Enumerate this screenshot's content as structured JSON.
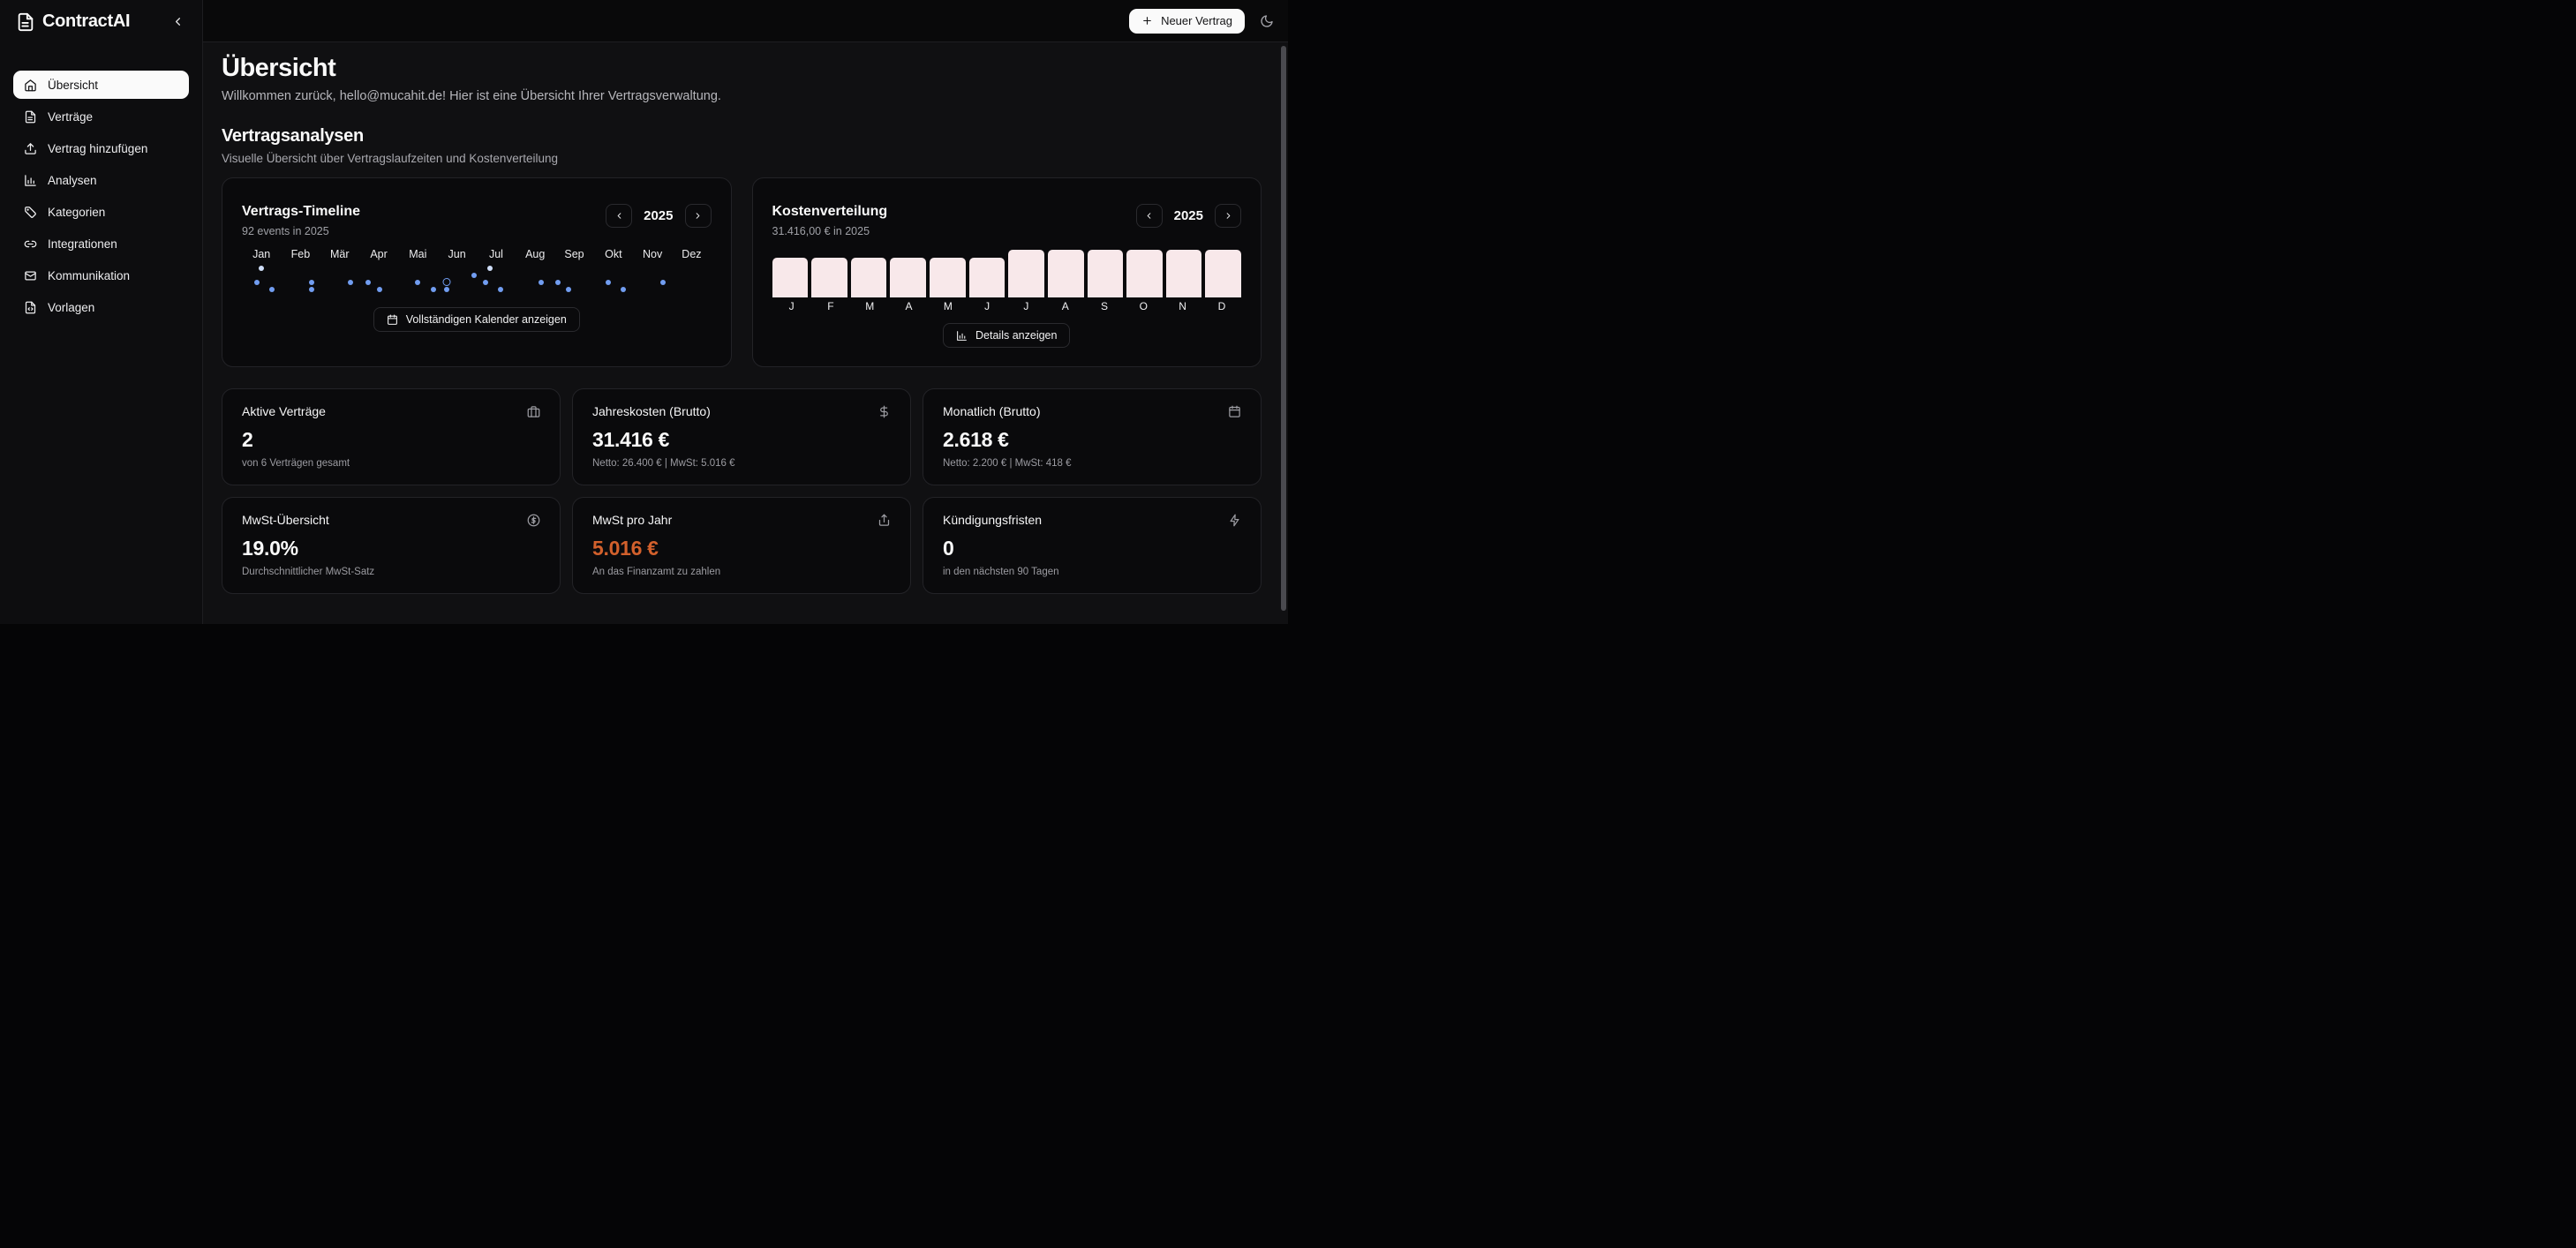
{
  "app": {
    "name": "ContractAI"
  },
  "topbar": {
    "new_contract_label": "Neuer Vertrag"
  },
  "sidebar": {
    "items": [
      {
        "label": "Übersicht",
        "icon": "home-icon",
        "active": true
      },
      {
        "label": "Verträge",
        "icon": "file-text-icon",
        "active": false
      },
      {
        "label": "Vertrag hinzufügen",
        "icon": "upload-icon",
        "active": false
      },
      {
        "label": "Analysen",
        "icon": "bar-chart-icon",
        "active": false
      },
      {
        "label": "Kategorien",
        "icon": "tag-icon",
        "active": false
      },
      {
        "label": "Integrationen",
        "icon": "link-icon",
        "active": false
      },
      {
        "label": "Kommunikation",
        "icon": "mail-icon",
        "active": false
      },
      {
        "label": "Vorlagen",
        "icon": "file-code-icon",
        "active": false
      }
    ]
  },
  "page": {
    "title": "Übersicht",
    "welcome": "Willkommen zurück, hello@mucahit.de! Hier ist eine Übersicht Ihrer Vertragsverwaltung."
  },
  "analytics": {
    "title": "Vertragsanalysen",
    "subtitle": "Visuelle Übersicht über Vertragslaufzeiten und Kostenverteilung"
  },
  "timeline_card": {
    "title": "Vertrags-Timeline",
    "subtitle": "92 events in 2025",
    "year": "2025",
    "button_label": "Vollständigen Kalender anzeigen"
  },
  "cost_card": {
    "title": "Kostenverteilung",
    "subtitle": "31.416,00 € in 2025",
    "year": "2025",
    "button_label": "Details anzeigen"
  },
  "chart_data": [
    {
      "type": "scatter",
      "title": "Vertrags-Timeline",
      "subtitle": "92 events in 2025",
      "year": 2025,
      "x_axis_labels": [
        "Jan",
        "Feb",
        "Mär",
        "Apr",
        "Mai",
        "Jun",
        "Jul",
        "Aug",
        "Sep",
        "Okt",
        "Nov",
        "Dez"
      ],
      "grid": false,
      "legend": "none",
      "events": [
        {
          "x": 4.2,
          "row": 0,
          "variant": "light"
        },
        {
          "x": 52.9,
          "row": 0,
          "variant": "light"
        },
        {
          "x": 49.4,
          "row": 1,
          "variant": "solid"
        },
        {
          "x": 3.2,
          "row": 2,
          "variant": "solid"
        },
        {
          "x": 14.9,
          "row": 2,
          "variant": "solid"
        },
        {
          "x": 23.2,
          "row": 2,
          "variant": "solid"
        },
        {
          "x": 26.9,
          "row": 2,
          "variant": "solid"
        },
        {
          "x": 37.5,
          "row": 2,
          "variant": "solid"
        },
        {
          "x": 43.7,
          "row": 2,
          "variant": "ring"
        },
        {
          "x": 52.0,
          "row": 2,
          "variant": "solid"
        },
        {
          "x": 63.7,
          "row": 2,
          "variant": "solid"
        },
        {
          "x": 67.4,
          "row": 2,
          "variant": "solid"
        },
        {
          "x": 78.0,
          "row": 2,
          "variant": "solid"
        },
        {
          "x": 89.8,
          "row": 2,
          "variant": "solid"
        },
        {
          "x": 6.4,
          "row": 3,
          "variant": "solid"
        },
        {
          "x": 14.9,
          "row": 3,
          "variant": "solid"
        },
        {
          "x": 29.3,
          "row": 3,
          "variant": "solid"
        },
        {
          "x": 40.8,
          "row": 3,
          "variant": "solid"
        },
        {
          "x": 43.7,
          "row": 3,
          "variant": "solid"
        },
        {
          "x": 55.2,
          "row": 3,
          "variant": "solid"
        },
        {
          "x": 69.7,
          "row": 3,
          "variant": "solid"
        },
        {
          "x": 81.2,
          "row": 3,
          "variant": "solid"
        }
      ]
    },
    {
      "type": "bar",
      "title": "Kostenverteilung",
      "total_label": "31.416,00 € in 2025",
      "year": 2025,
      "categories": [
        "J",
        "F",
        "M",
        "A",
        "M",
        "J",
        "J",
        "A",
        "S",
        "O",
        "N",
        "D"
      ],
      "values_eur_estimated": [
        2380,
        2380,
        2380,
        2380,
        2380,
        2380,
        2856,
        2856,
        2856,
        2856,
        2856,
        2856
      ],
      "relative_heights": [
        0.83,
        0.83,
        0.83,
        0.83,
        0.83,
        0.83,
        1,
        1,
        1,
        1,
        1,
        1
      ],
      "ylim_relative": [
        0,
        1
      ],
      "grid": false,
      "legend": "none"
    }
  ],
  "stats": [
    {
      "title": "Aktive Verträge",
      "icon": "briefcase-icon",
      "value": "2",
      "subtitle": "von 6 Verträgen gesamt"
    },
    {
      "title": "Jahreskosten (Brutto)",
      "icon": "dollar-icon",
      "value": "31.416 €",
      "subtitle": "Netto: 26.400 € | MwSt: 5.016 €"
    },
    {
      "title": "Monatlich (Brutto)",
      "icon": "calendar-icon",
      "value": "2.618 €",
      "subtitle": "Netto: 2.200 € | MwSt: 418 €"
    },
    {
      "title": "MwSt-Übersicht",
      "icon": "circle-dollar-icon",
      "value": "19.0%",
      "subtitle": "Durchschnittlicher MwSt-Satz"
    },
    {
      "title": "MwSt pro Jahr",
      "icon": "share-icon",
      "value": "5.016 €",
      "subtitle": "An das Finanzamt zu zahlen"
    },
    {
      "title": "Kündigungsfristen",
      "icon": "zap-icon",
      "value": "0",
      "subtitle": "in den nächsten 90 Tagen"
    }
  ],
  "colors": {
    "dot_blue": "#719df1",
    "dot_blue_light": "#cfdef8",
    "bar_pink": "#f8e8ea",
    "orange_value": "#d2602c",
    "active_item_bg": "#fafafa"
  }
}
